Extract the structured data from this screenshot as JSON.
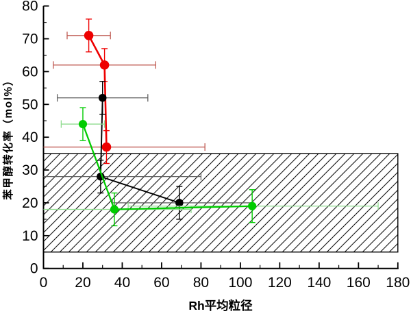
{
  "chart_data": {
    "type": "line",
    "subtype": "scatter-line-with-error-bars",
    "title": "",
    "xlabel": "Rh平均粒径",
    "ylabel": "苯甲醇转化率（mol%）",
    "xlim": [
      0,
      180
    ],
    "ylim": [
      0,
      80
    ],
    "xticks": [
      0,
      20,
      40,
      60,
      80,
      100,
      120,
      140,
      160,
      180
    ],
    "yticks": [
      0,
      10,
      20,
      30,
      40,
      50,
      60,
      70,
      80
    ],
    "x_minor_step": 10,
    "y_minor_step": 5,
    "grid": false,
    "legend_position": "none",
    "hatch_band": {
      "x_range": [
        0,
        180
      ],
      "y_range": [
        5,
        35
      ],
      "fill": "diagonal-hatch",
      "hatch_color": "#111111",
      "border_color": "#000000",
      "background": "#ffffff"
    },
    "series": [
      {
        "name": "series-red",
        "marker": "circle",
        "color": "#ee0000",
        "errorbar_color": "#bf5a52",
        "points": [
          {
            "x": 23,
            "y": 71,
            "xbar_min": 12,
            "xbar_max": 34,
            "yerr": 5
          },
          {
            "x": 31,
            "y": 62,
            "xbar_min": 5,
            "xbar_max": 57,
            "yerr": 5
          },
          {
            "x": 32,
            "y": 37,
            "xbar_min": 0,
            "xbar_max": 82,
            "yerr": 5
          }
        ]
      },
      {
        "name": "series-black",
        "marker": "circle",
        "color": "#000000",
        "errorbar_color": "#636363",
        "points": [
          {
            "x": 30,
            "y": 52,
            "xbar_min": 7,
            "xbar_max": 53,
            "yerr": 5
          },
          {
            "x": 29,
            "y": 28,
            "xbar_min": 0,
            "xbar_max": 80,
            "yerr": 5
          },
          {
            "x": 69,
            "y": 20,
            "xbar_min": 35,
            "xbar_max": 106,
            "yerr": 5
          }
        ]
      },
      {
        "name": "series-green",
        "marker": "circle",
        "color": "#00cc00",
        "errorbar_color": "#8fdc8f",
        "points": [
          {
            "x": 20,
            "y": 44,
            "xbar_min": 9,
            "xbar_max": 31,
            "yerr": 5
          },
          {
            "x": 36,
            "y": 18,
            "xbar_min": 0,
            "xbar_max": 75,
            "yerr": 5
          },
          {
            "x": 106,
            "y": 19,
            "xbar_min": 43,
            "xbar_max": 170,
            "yerr": 5
          }
        ]
      }
    ]
  }
}
